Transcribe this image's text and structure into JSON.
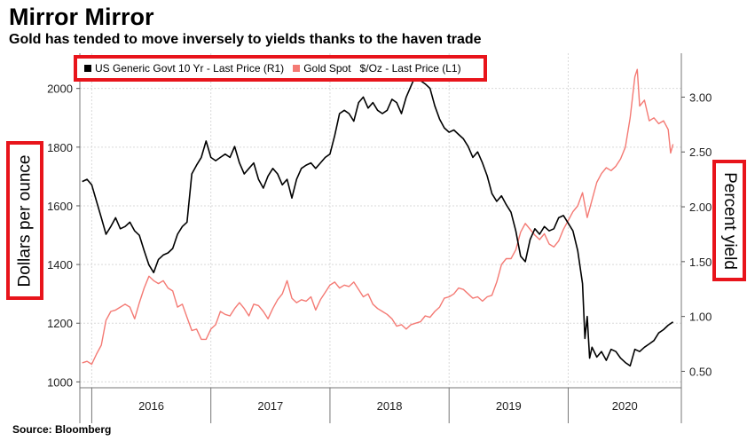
{
  "title": "Mirror Mirror",
  "subtitle": "Gold has tended to move inversely to yields thanks to the haven trade",
  "source": "Source: Bloomberg",
  "chart_data": {
    "type": "line",
    "ylabel_left": "Dollars per ounce",
    "ylabel_right": "Percent yield",
    "ylim_left": [
      980,
      2120
    ],
    "ylim_right": [
      0.35,
      3.4
    ],
    "yticks_left": [
      "1000",
      "1200",
      "1400",
      "1600",
      "1800",
      "2000"
    ],
    "yticks_right": [
      "0.50",
      "1.00",
      "1.50",
      "2.00",
      "2.50",
      "3.00"
    ],
    "x_categories": [
      "2016",
      "2017",
      "2018",
      "2019",
      "2020"
    ],
    "xlim": [
      2015.9,
      2020.95
    ],
    "grid": true,
    "legend_position": "top-left",
    "series": [
      {
        "name": "US Generic Govt 10 Yr - Last Price (R1)",
        "axis": "right",
        "color": "#000000",
        "points": [
          [
            2015.92,
            2.23
          ],
          [
            2015.96,
            2.25
          ],
          [
            2016.0,
            2.2
          ],
          [
            2016.04,
            2.05
          ],
          [
            2016.08,
            1.9
          ],
          [
            2016.12,
            1.75
          ],
          [
            2016.16,
            1.82
          ],
          [
            2016.2,
            1.9
          ],
          [
            2016.24,
            1.8
          ],
          [
            2016.28,
            1.82
          ],
          [
            2016.32,
            1.86
          ],
          [
            2016.36,
            1.78
          ],
          [
            2016.4,
            1.74
          ],
          [
            2016.44,
            1.6
          ],
          [
            2016.48,
            1.47
          ],
          [
            2016.52,
            1.4
          ],
          [
            2016.56,
            1.52
          ],
          [
            2016.6,
            1.56
          ],
          [
            2016.64,
            1.58
          ],
          [
            2016.68,
            1.62
          ],
          [
            2016.72,
            1.75
          ],
          [
            2016.76,
            1.82
          ],
          [
            2016.8,
            1.86
          ],
          [
            2016.84,
            2.3
          ],
          [
            2016.88,
            2.38
          ],
          [
            2016.92,
            2.45
          ],
          [
            2016.96,
            2.6
          ],
          [
            2017.0,
            2.45
          ],
          [
            2017.04,
            2.42
          ],
          [
            2017.08,
            2.45
          ],
          [
            2017.12,
            2.48
          ],
          [
            2017.16,
            2.45
          ],
          [
            2017.2,
            2.55
          ],
          [
            2017.24,
            2.4
          ],
          [
            2017.28,
            2.3
          ],
          [
            2017.32,
            2.35
          ],
          [
            2017.36,
            2.4
          ],
          [
            2017.4,
            2.25
          ],
          [
            2017.44,
            2.17
          ],
          [
            2017.48,
            2.28
          ],
          [
            2017.52,
            2.35
          ],
          [
            2017.56,
            2.3
          ],
          [
            2017.6,
            2.2
          ],
          [
            2017.64,
            2.25
          ],
          [
            2017.68,
            2.08
          ],
          [
            2017.72,
            2.25
          ],
          [
            2017.76,
            2.35
          ],
          [
            2017.8,
            2.38
          ],
          [
            2017.84,
            2.4
          ],
          [
            2017.88,
            2.35
          ],
          [
            2017.92,
            2.4
          ],
          [
            2017.96,
            2.45
          ],
          [
            2018.0,
            2.48
          ],
          [
            2018.04,
            2.65
          ],
          [
            2018.08,
            2.85
          ],
          [
            2018.12,
            2.88
          ],
          [
            2018.16,
            2.85
          ],
          [
            2018.2,
            2.78
          ],
          [
            2018.24,
            2.95
          ],
          [
            2018.28,
            3.0
          ],
          [
            2018.32,
            2.9
          ],
          [
            2018.36,
            2.95
          ],
          [
            2018.4,
            2.88
          ],
          [
            2018.44,
            2.85
          ],
          [
            2018.48,
            2.88
          ],
          [
            2018.52,
            2.98
          ],
          [
            2018.56,
            2.95
          ],
          [
            2018.6,
            2.85
          ],
          [
            2018.64,
            3.0
          ],
          [
            2018.68,
            3.1
          ],
          [
            2018.72,
            3.2
          ],
          [
            2018.76,
            3.15
          ],
          [
            2018.8,
            3.12
          ],
          [
            2018.84,
            3.08
          ],
          [
            2018.88,
            2.92
          ],
          [
            2018.92,
            2.8
          ],
          [
            2018.96,
            2.72
          ],
          [
            2019.0,
            2.68
          ],
          [
            2019.04,
            2.7
          ],
          [
            2019.08,
            2.66
          ],
          [
            2019.12,
            2.62
          ],
          [
            2019.16,
            2.55
          ],
          [
            2019.2,
            2.45
          ],
          [
            2019.24,
            2.5
          ],
          [
            2019.28,
            2.4
          ],
          [
            2019.32,
            2.28
          ],
          [
            2019.36,
            2.12
          ],
          [
            2019.4,
            2.05
          ],
          [
            2019.44,
            2.1
          ],
          [
            2019.48,
            2.02
          ],
          [
            2019.52,
            1.95
          ],
          [
            2019.56,
            1.78
          ],
          [
            2019.6,
            1.55
          ],
          [
            2019.64,
            1.5
          ],
          [
            2019.68,
            1.7
          ],
          [
            2019.72,
            1.8
          ],
          [
            2019.76,
            1.75
          ],
          [
            2019.8,
            1.82
          ],
          [
            2019.84,
            1.78
          ],
          [
            2019.88,
            1.8
          ],
          [
            2019.92,
            1.9
          ],
          [
            2019.96,
            1.92
          ],
          [
            2020.0,
            1.85
          ],
          [
            2020.04,
            1.78
          ],
          [
            2020.08,
            1.6
          ],
          [
            2020.12,
            1.3
          ],
          [
            2020.14,
            0.8
          ],
          [
            2020.16,
            1.0
          ],
          [
            2020.18,
            0.62
          ],
          [
            2020.2,
            0.72
          ],
          [
            2020.24,
            0.63
          ],
          [
            2020.28,
            0.68
          ],
          [
            2020.32,
            0.6
          ],
          [
            2020.36,
            0.7
          ],
          [
            2020.4,
            0.68
          ],
          [
            2020.44,
            0.62
          ],
          [
            2020.48,
            0.58
          ],
          [
            2020.52,
            0.55
          ],
          [
            2020.56,
            0.7
          ],
          [
            2020.6,
            0.68
          ],
          [
            2020.64,
            0.72
          ],
          [
            2020.68,
            0.75
          ],
          [
            2020.72,
            0.78
          ],
          [
            2020.76,
            0.85
          ],
          [
            2020.8,
            0.88
          ],
          [
            2020.84,
            0.92
          ],
          [
            2020.88,
            0.95
          ]
        ]
      },
      {
        "name": "Gold Spot   $/Oz - Last Price (L1)",
        "axis": "left",
        "color": "#f47a74",
        "points": [
          [
            2015.92,
            1065
          ],
          [
            2015.96,
            1070
          ],
          [
            2016.0,
            1060
          ],
          [
            2016.04,
            1095
          ],
          [
            2016.08,
            1125
          ],
          [
            2016.12,
            1210
          ],
          [
            2016.16,
            1240
          ],
          [
            2016.2,
            1245
          ],
          [
            2016.24,
            1255
          ],
          [
            2016.28,
            1265
          ],
          [
            2016.32,
            1255
          ],
          [
            2016.36,
            1215
          ],
          [
            2016.4,
            1270
          ],
          [
            2016.44,
            1320
          ],
          [
            2016.48,
            1360
          ],
          [
            2016.52,
            1345
          ],
          [
            2016.56,
            1335
          ],
          [
            2016.6,
            1345
          ],
          [
            2016.64,
            1320
          ],
          [
            2016.68,
            1310
          ],
          [
            2016.72,
            1255
          ],
          [
            2016.76,
            1265
          ],
          [
            2016.8,
            1220
          ],
          [
            2016.84,
            1175
          ],
          [
            2016.88,
            1180
          ],
          [
            2016.92,
            1145
          ],
          [
            2016.96,
            1145
          ],
          [
            2017.0,
            1180
          ],
          [
            2017.04,
            1195
          ],
          [
            2017.08,
            1240
          ],
          [
            2017.12,
            1230
          ],
          [
            2017.16,
            1225
          ],
          [
            2017.2,
            1250
          ],
          [
            2017.24,
            1270
          ],
          [
            2017.28,
            1250
          ],
          [
            2017.32,
            1225
          ],
          [
            2017.36,
            1265
          ],
          [
            2017.4,
            1260
          ],
          [
            2017.44,
            1240
          ],
          [
            2017.48,
            1215
          ],
          [
            2017.52,
            1250
          ],
          [
            2017.56,
            1280
          ],
          [
            2017.6,
            1300
          ],
          [
            2017.64,
            1345
          ],
          [
            2017.68,
            1285
          ],
          [
            2017.72,
            1270
          ],
          [
            2017.76,
            1280
          ],
          [
            2017.8,
            1275
          ],
          [
            2017.84,
            1290
          ],
          [
            2017.88,
            1245
          ],
          [
            2017.92,
            1280
          ],
          [
            2017.96,
            1305
          ],
          [
            2018.0,
            1330
          ],
          [
            2018.04,
            1340
          ],
          [
            2018.08,
            1320
          ],
          [
            2018.12,
            1330
          ],
          [
            2018.16,
            1325
          ],
          [
            2018.2,
            1340
          ],
          [
            2018.24,
            1315
          ],
          [
            2018.28,
            1290
          ],
          [
            2018.32,
            1300
          ],
          [
            2018.36,
            1265
          ],
          [
            2018.4,
            1250
          ],
          [
            2018.44,
            1240
          ],
          [
            2018.48,
            1230
          ],
          [
            2018.52,
            1215
          ],
          [
            2018.56,
            1190
          ],
          [
            2018.6,
            1195
          ],
          [
            2018.64,
            1180
          ],
          [
            2018.68,
            1195
          ],
          [
            2018.72,
            1200
          ],
          [
            2018.76,
            1205
          ],
          [
            2018.8,
            1225
          ],
          [
            2018.84,
            1220
          ],
          [
            2018.88,
            1240
          ],
          [
            2018.92,
            1255
          ],
          [
            2018.96,
            1285
          ],
          [
            2019.0,
            1290
          ],
          [
            2019.04,
            1300
          ],
          [
            2019.08,
            1320
          ],
          [
            2019.12,
            1315
          ],
          [
            2019.16,
            1300
          ],
          [
            2019.2,
            1285
          ],
          [
            2019.24,
            1290
          ],
          [
            2019.28,
            1275
          ],
          [
            2019.32,
            1290
          ],
          [
            2019.36,
            1295
          ],
          [
            2019.4,
            1340
          ],
          [
            2019.44,
            1400
          ],
          [
            2019.48,
            1420
          ],
          [
            2019.52,
            1420
          ],
          [
            2019.56,
            1450
          ],
          [
            2019.6,
            1510
          ],
          [
            2019.64,
            1540
          ],
          [
            2019.68,
            1520
          ],
          [
            2019.72,
            1500
          ],
          [
            2019.76,
            1485
          ],
          [
            2019.8,
            1505
          ],
          [
            2019.84,
            1470
          ],
          [
            2019.88,
            1460
          ],
          [
            2019.92,
            1480
          ],
          [
            2019.96,
            1520
          ],
          [
            2020.0,
            1550
          ],
          [
            2020.04,
            1580
          ],
          [
            2020.08,
            1600
          ],
          [
            2020.12,
            1645
          ],
          [
            2020.16,
            1560
          ],
          [
            2020.2,
            1620
          ],
          [
            2020.24,
            1680
          ],
          [
            2020.28,
            1710
          ],
          [
            2020.32,
            1730
          ],
          [
            2020.36,
            1720
          ],
          [
            2020.4,
            1735
          ],
          [
            2020.44,
            1760
          ],
          [
            2020.48,
            1800
          ],
          [
            2020.52,
            1900
          ],
          [
            2020.56,
            2040
          ],
          [
            2020.58,
            2065
          ],
          [
            2020.6,
            1940
          ],
          [
            2020.64,
            1960
          ],
          [
            2020.68,
            1890
          ],
          [
            2020.72,
            1900
          ],
          [
            2020.76,
            1880
          ],
          [
            2020.8,
            1890
          ],
          [
            2020.84,
            1860
          ],
          [
            2020.86,
            1780
          ],
          [
            2020.88,
            1810
          ]
        ]
      }
    ]
  },
  "legend": {
    "items": [
      {
        "label": "US Generic Govt 10 Yr - Last Price (R1)",
        "color": "#000000"
      },
      {
        "label": "Gold Spot   $/Oz - Last Price (L1)",
        "color": "#f47a74"
      }
    ]
  },
  "colors": {
    "highlight": "#e8141b",
    "grid": "#d9d9d9"
  }
}
